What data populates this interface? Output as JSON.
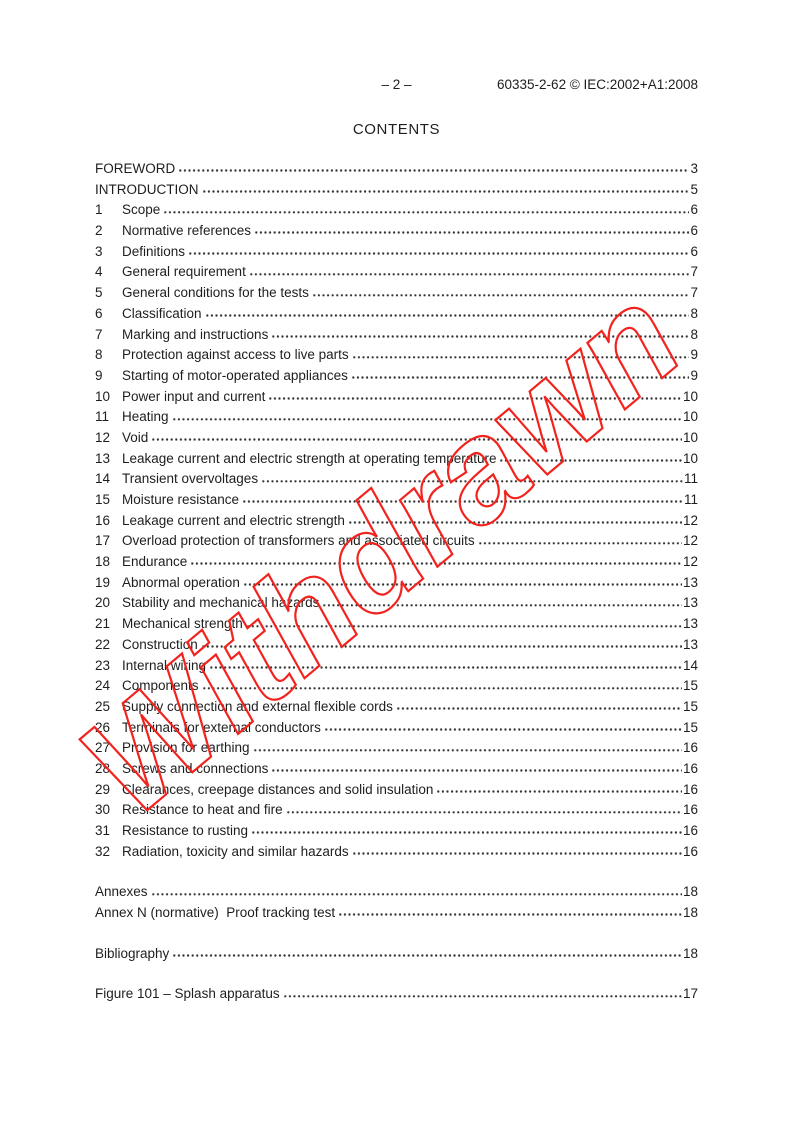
{
  "header": {
    "page_label": "– 2 –",
    "doc_ref": "60335-2-62 © IEC:2002+A1:2008"
  },
  "title": "CONTENTS",
  "watermark": {
    "text": "Withdrawn",
    "color": "#f2231e"
  },
  "toc": {
    "main": [
      {
        "num": "",
        "label": "FOREWORD",
        "page": "3"
      },
      {
        "num": "",
        "label": "INTRODUCTION",
        "page": "5"
      },
      {
        "num": "1",
        "label": "Scope",
        "page": "6"
      },
      {
        "num": "2",
        "label": "Normative references",
        "page": "6"
      },
      {
        "num": "3",
        "label": "Definitions",
        "page": "6"
      },
      {
        "num": "4",
        "label": "General requirement",
        "page": "7"
      },
      {
        "num": "5",
        "label": "General conditions for the tests",
        "page": "7"
      },
      {
        "num": "6",
        "label": "Classification",
        "page": "8"
      },
      {
        "num": "7",
        "label": "Marking and instructions",
        "page": "8"
      },
      {
        "num": "8",
        "label": "Protection against access to live parts",
        "page": "9"
      },
      {
        "num": "9",
        "label": "Starting of motor-operated appliances",
        "page": "9"
      },
      {
        "num": "10",
        "label": "Power input and current",
        "page": "10"
      },
      {
        "num": "11",
        "label": "Heating",
        "page": "10"
      },
      {
        "num": "12",
        "label": "Void",
        "page": "10"
      },
      {
        "num": "13",
        "label": "Leakage current and electric strength at operating temperature",
        "page": "10"
      },
      {
        "num": "14",
        "label": "Transient overvoltages",
        "page": "11"
      },
      {
        "num": "15",
        "label": "Moisture resistance",
        "page": "11"
      },
      {
        "num": "16",
        "label": "Leakage current and electric strength",
        "page": "12"
      },
      {
        "num": "17",
        "label": "Overload protection of transformers and associated circuits",
        "page": "12"
      },
      {
        "num": "18",
        "label": "Endurance",
        "page": "12"
      },
      {
        "num": "19",
        "label": "Abnormal operation",
        "page": "13"
      },
      {
        "num": "20",
        "label": "Stability and mechanical hazards",
        "page": "13"
      },
      {
        "num": "21",
        "label": "Mechanical strength",
        "page": "13"
      },
      {
        "num": "22",
        "label": "Construction",
        "page": "13"
      },
      {
        "num": "23",
        "label": "Internal wiring",
        "page": "14"
      },
      {
        "num": "24",
        "label": "Components",
        "page": "15"
      },
      {
        "num": "25",
        "label": "Supply connection and external flexible cords",
        "page": "15"
      },
      {
        "num": "26",
        "label": "Terminals for external conductors",
        "page": "15"
      },
      {
        "num": "27",
        "label": "Provision for earthing",
        "page": "16"
      },
      {
        "num": "28",
        "label": "Screws and connections",
        "page": "16"
      },
      {
        "num": "29",
        "label": "Clearances, creepage distances and solid insulation",
        "page": "16"
      },
      {
        "num": "30",
        "label": "Resistance to heat and fire",
        "page": "16"
      },
      {
        "num": "31",
        "label": "Resistance to rusting",
        "page": "16"
      },
      {
        "num": "32",
        "label": "Radiation, toxicity and similar hazards",
        "page": "16"
      }
    ],
    "annexes": [
      {
        "num": "",
        "label": "Annexes",
        "page": "18"
      },
      {
        "num": "",
        "label": "Annex N (normative)  Proof tracking test",
        "page": "18"
      }
    ],
    "bibliography": [
      {
        "num": "",
        "label": "Bibliography",
        "page": "18"
      }
    ],
    "figures": [
      {
        "num": "",
        "label": "Figure 101 – Splash apparatus",
        "page": "17"
      }
    ]
  }
}
